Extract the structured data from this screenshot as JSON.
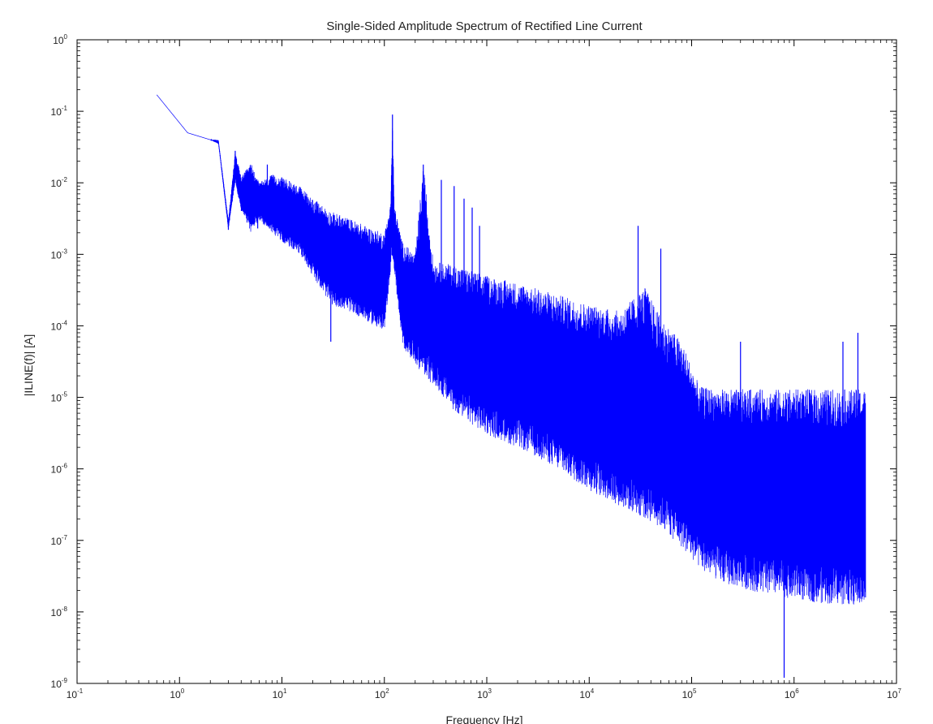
{
  "chart_data": {
    "type": "line",
    "title": "Single-Sided Amplitude Spectrum of Rectified Line Current",
    "xlabel": "Frequency [Hz]",
    "ylabel": "|ILINE(f)| [A]",
    "x_scale": "log",
    "y_scale": "log",
    "xlim": [
      0.1,
      10000000
    ],
    "ylim": [
      1e-09,
      1
    ],
    "grid": false,
    "legend": "none",
    "line_color": "#0000ff",
    "x_ticks": [
      {
        "value": 0.1,
        "base": "10",
        "exp": "-1"
      },
      {
        "value": 1,
        "base": "10",
        "exp": "0"
      },
      {
        "value": 10,
        "base": "10",
        "exp": "1"
      },
      {
        "value": 100,
        "base": "10",
        "exp": "2"
      },
      {
        "value": 1000,
        "base": "10",
        "exp": "3"
      },
      {
        "value": 10000,
        "base": "10",
        "exp": "4"
      },
      {
        "value": 100000,
        "base": "10",
        "exp": "5"
      },
      {
        "value": 1000000,
        "base": "10",
        "exp": "6"
      },
      {
        "value": 10000000,
        "base": "10",
        "exp": "7"
      }
    ],
    "y_ticks": [
      {
        "value": 1,
        "base": "10",
        "exp": "0"
      },
      {
        "value": 0.1,
        "base": "10",
        "exp": "-1"
      },
      {
        "value": 0.01,
        "base": "10",
        "exp": "-2"
      },
      {
        "value": 0.001,
        "base": "10",
        "exp": "-3"
      },
      {
        "value": 0.0001,
        "base": "10",
        "exp": "-4"
      },
      {
        "value": 1e-05,
        "base": "10",
        "exp": "-5"
      },
      {
        "value": 1e-06,
        "base": "10",
        "exp": "-6"
      },
      {
        "value": 1e-07,
        "base": "10",
        "exp": "-7"
      },
      {
        "value": 1e-08,
        "base": "10",
        "exp": "-8"
      },
      {
        "value": 1e-09,
        "base": "10",
        "exp": "-9"
      }
    ],
    "series": [
      {
        "x": [
          0.6,
          1.2,
          2.0,
          2.4,
          3.0,
          3.5,
          4.0,
          5.0,
          6.0,
          8.0,
          10,
          15,
          20,
          30,
          50,
          80,
          100,
          115,
          120,
          125,
          150,
          200,
          240,
          300,
          500,
          1000,
          2000,
          4000,
          10000,
          20000,
          35000,
          50000,
          80000,
          120000,
          200000,
          500000,
          1000000,
          2000000,
          5000000
        ],
        "upper": [
          0.17,
          0.05,
          0.04,
          0.04,
          0.003,
          0.028,
          0.012,
          0.019,
          0.01,
          0.013,
          0.012,
          0.009,
          0.006,
          0.004,
          0.003,
          0.0022,
          0.002,
          0.005,
          0.09,
          0.005,
          0.0015,
          0.001,
          0.018,
          0.0008,
          0.0007,
          0.0005,
          0.0004,
          0.0003,
          0.0002,
          0.00016,
          0.00035,
          0.00013,
          6e-05,
          1.4e-05,
          1.3e-05,
          1.3e-05,
          1.3e-05,
          1.3e-05,
          1.3e-05
        ],
        "lower": [
          0.17,
          0.05,
          0.04,
          0.035,
          0.0022,
          0.01,
          0.004,
          0.002,
          0.003,
          0.002,
          0.0015,
          0.001,
          0.0005,
          0.0002,
          0.00015,
          0.0001,
          8e-05,
          0.0006,
          0.0009,
          0.0006,
          5e-05,
          3e-05,
          2e-05,
          1.5e-05,
          6e-06,
          3e-06,
          2e-06,
          1.2e-06,
          5e-07,
          3e-07,
          2e-07,
          1.5e-07,
          8e-08,
          4e-08,
          2.5e-08,
          1.8e-08,
          1.5e-08,
          1.3e-08,
          1.2e-08
        ]
      }
    ],
    "peaks": [
      {
        "x": 3.0,
        "y": 0.0022
      },
      {
        "x": 3.5,
        "y": 0.028
      },
      {
        "x": 5.8,
        "y": 0.0023
      },
      {
        "x": 7.2,
        "y": 0.018
      },
      {
        "x": 30,
        "y": 6e-05
      },
      {
        "x": 120,
        "y": 0.09
      },
      {
        "x": 240,
        "y": 0.018
      },
      {
        "x": 360,
        "y": 0.011
      },
      {
        "x": 480,
        "y": 0.009
      },
      {
        "x": 600,
        "y": 0.006
      },
      {
        "x": 720,
        "y": 0.0045
      },
      {
        "x": 850,
        "y": 0.0025
      },
      {
        "x": 30000,
        "y": 0.0025
      },
      {
        "x": 50000,
        "y": 0.0012
      },
      {
        "x": 300000,
        "y": 6e-05
      },
      {
        "x": 800000,
        "y": 1.2e-09
      },
      {
        "x": 3000000,
        "y": 6e-05
      },
      {
        "x": 4200000,
        "y": 8e-05
      }
    ]
  }
}
